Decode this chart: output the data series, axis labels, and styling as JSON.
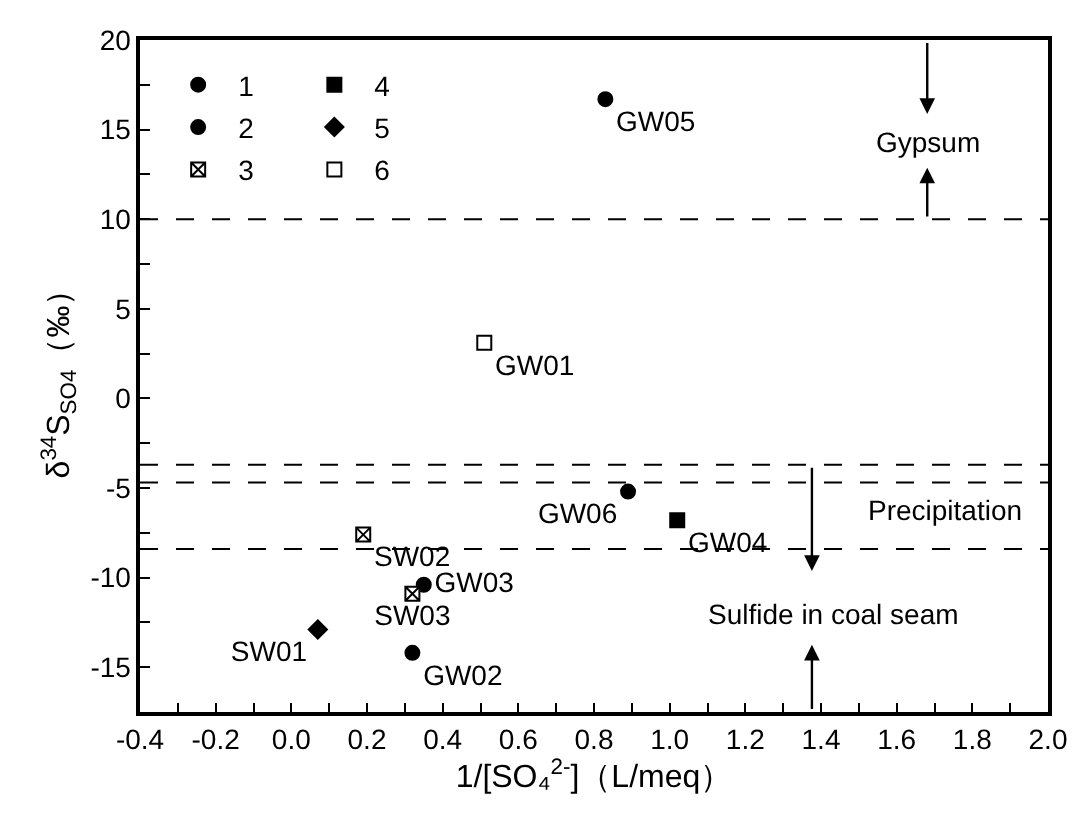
{
  "chart_data": {
    "type": "scatter",
    "xlabel": "1/[SO₄$^{2-}$]（L/meq）",
    "ylabel": "δ$^{34}$S$_{SO4}$（‰）",
    "series": [
      {
        "name": "1",
        "color": "#000000",
        "marker": "circle",
        "x": [
          0.89
        ],
        "values": [
          -5.2
        ],
        "value_labels": [
          "GW06"
        ]
      },
      {
        "name": "2",
        "color": "#000000",
        "marker": "circle",
        "x": [
          0.83,
          0.35,
          0.32
        ],
        "values": [
          16.7,
          -10.4,
          -14.2
        ],
        "value_labels": [
          "GW05",
          "GW03",
          "GW02"
        ]
      },
      {
        "name": "3",
        "color": "#ffffff",
        "marker": "cross",
        "x": [
          0.19,
          0.32
        ],
        "values": [
          -7.6,
          -10.9
        ],
        "value_labels": [
          "SW02",
          "SW03"
        ]
      },
      {
        "name": "4",
        "color": "#000000",
        "marker": "square",
        "x": [
          1.02
        ],
        "values": [
          -6.8
        ],
        "value_labels": [
          "GW04"
        ]
      },
      {
        "name": "5",
        "color": "#000000",
        "marker": "diamond",
        "x": [
          0.07
        ],
        "values": [
          -12.9
        ],
        "value_labels": [
          "SW01"
        ]
      },
      {
        "name": "6",
        "color": "#ffffff",
        "marker": "square",
        "x": [
          0.51
        ],
        "values": [
          3.1
        ],
        "value_labels": [
          "GW01"
        ]
      }
    ],
    "xlim": [
      -0.4,
      2.0
    ],
    "ylim": [
      -17.5,
      20
    ],
    "xticks": [
      -0.4,
      {
        "value": -0.3,
        "label": null
      },
      -0.2,
      {
        "value": -0.1,
        "label": null
      },
      {
        "value": 0,
        "label": "0.0"
      },
      {
        "value": 0.1,
        "label": null
      },
      0.2,
      {
        "value": 0.3,
        "label": null
      },
      0.4,
      {
        "value": 0.5,
        "label": null
      },
      0.6,
      {
        "value": 0.7,
        "label": null
      },
      0.8,
      {
        "value": 0.9,
        "label": null
      },
      {
        "value": 1.0,
        "label": "1.0"
      },
      {
        "value": 1.1,
        "label": null
      },
      1.2,
      {
        "value": 1.3,
        "label": null
      },
      1.4,
      {
        "value": 1.5,
        "label": null
      },
      1.6,
      {
        "value": 1.7,
        "label": null
      },
      1.8,
      {
        "value": 1.9,
        "label": null
      },
      {
        "value": 2.0,
        "label": "2.0"
      }
    ],
    "yticks": [
      -15,
      {
        "value": -12.5,
        "label": null
      },
      -10,
      {
        "value": -7.5,
        "label": null
      },
      -5,
      {
        "value": -2.5,
        "label": null
      },
      0,
      {
        "value": 2.5,
        "label": null
      },
      5,
      {
        "value": 7.5,
        "label": null
      },
      10,
      {
        "value": 12.5,
        "label": null
      },
      15,
      {
        "value": 17.5,
        "label": null
      },
      20
    ],
    "ref_lines": [
      {
        "axis": "y",
        "value": 10,
        "line_style": "dashed"
      },
      {
        "axis": "y",
        "value": -3.7,
        "line_style": "dashed"
      },
      {
        "axis": "y",
        "value": -4.7,
        "line_style": "dashed"
      },
      {
        "axis": "y",
        "value": -8.4,
        "line_style": "dashed"
      }
    ],
    "annotations": [
      "Gypsum",
      "Precipitation",
      "Sulfide in coal seam"
    ],
    "legend": "top left"
  }
}
